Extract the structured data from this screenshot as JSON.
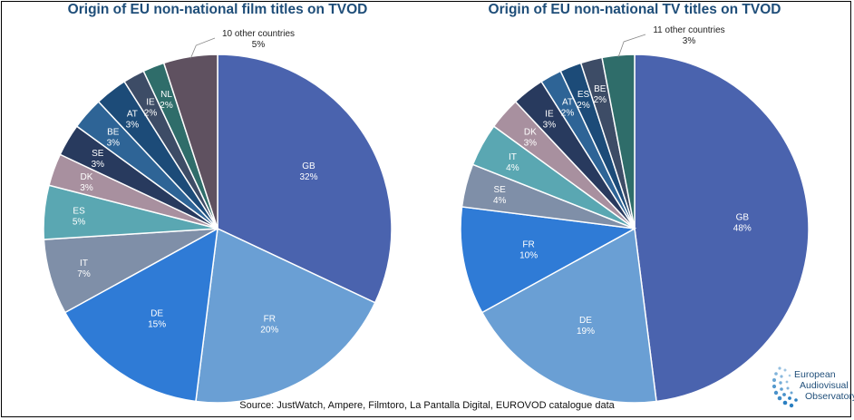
{
  "source": "Source: JustWatch, Ampere, Filmtoro, La Pantalla Digital, EUROVOD catalogue data",
  "logo": {
    "lines": [
      "European",
      "Audiovisual",
      "Observatory"
    ],
    "icon": "observatory-swirl-icon"
  },
  "chart_data": [
    {
      "type": "pie",
      "title": "Origin of EU non-national film titles on TVOD",
      "slices": [
        {
          "label": "GB",
          "value": 32,
          "display": "32%",
          "color": "#4a63ae"
        },
        {
          "label": "FR",
          "value": 20,
          "display": "20%",
          "color": "#6a9fd4"
        },
        {
          "label": "DE",
          "value": 15,
          "display": "15%",
          "color": "#2f7bd6"
        },
        {
          "label": "IT",
          "value": 7,
          "display": "7%",
          "color": "#7f8fa8"
        },
        {
          "label": "ES",
          "value": 5,
          "display": "5%",
          "color": "#5aa7b2"
        },
        {
          "label": "DK",
          "value": 3,
          "display": "3%",
          "color": "#a8909f"
        },
        {
          "label": "SE",
          "value": 3,
          "display": "3%",
          "color": "#283a5e"
        },
        {
          "label": "BE",
          "value": 3,
          "display": "3%",
          "color": "#2e6496"
        },
        {
          "label": "AT",
          "value": 3,
          "display": "3%",
          "color": "#1c4b78"
        },
        {
          "label": "IE",
          "value": 2,
          "display": "2%",
          "color": "#3d4c66"
        },
        {
          "label": "NL",
          "value": 2,
          "display": "2%",
          "color": "#2f6d6a"
        },
        {
          "label": "10 other countries",
          "value": 5,
          "display": "5%",
          "color": "#5f5160"
        }
      ]
    },
    {
      "type": "pie",
      "title": "Origin of EU non-national TV titles on TVOD",
      "slices": [
        {
          "label": "GB",
          "value": 48,
          "display": "48%",
          "color": "#4a63ae"
        },
        {
          "label": "DE",
          "value": 19,
          "display": "19%",
          "color": "#6a9fd4"
        },
        {
          "label": "FR",
          "value": 10,
          "display": "10%",
          "color": "#2f7bd6"
        },
        {
          "label": "SE",
          "value": 4,
          "display": "4%",
          "color": "#7f8fa8"
        },
        {
          "label": "IT",
          "value": 4,
          "display": "4%",
          "color": "#5aa7b2"
        },
        {
          "label": "DK",
          "value": 3,
          "display": "3%",
          "color": "#a8909f"
        },
        {
          "label": "IE",
          "value": 3,
          "display": "3%",
          "color": "#283a5e"
        },
        {
          "label": "AT",
          "value": 2,
          "display": "2%",
          "color": "#2e6496"
        },
        {
          "label": "ES",
          "value": 2,
          "display": "2%",
          "color": "#1c4b78"
        },
        {
          "label": "BE",
          "value": 2,
          "display": "2%",
          "color": "#3d4c66"
        },
        {
          "label": "11 other countries",
          "value": 3,
          "display": "3%",
          "color": "#2f6d6a"
        }
      ]
    }
  ]
}
